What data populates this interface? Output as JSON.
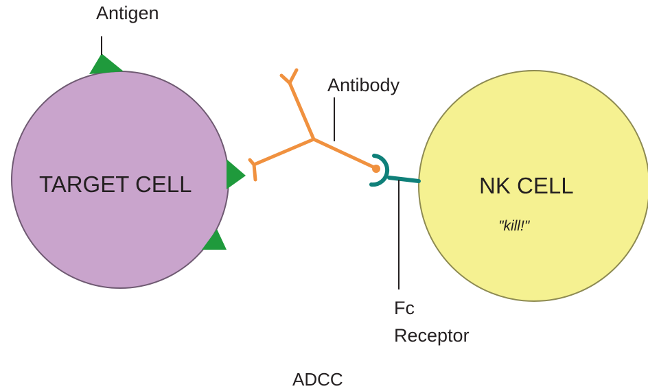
{
  "labels": {
    "antigen": "Antigen",
    "antibody": "Antibody",
    "target_cell": "TARGET CELL",
    "nk_cell": "NK CELL",
    "kill": "\"kill!\"",
    "fc_line1": "Fc",
    "fc_line2": "Receptor",
    "caption": "ADCC"
  },
  "colors": {
    "target_cell_fill": "#c9a4cc",
    "target_cell_stroke": "#6f5a72",
    "nk_cell_fill": "#f5f191",
    "nk_cell_stroke": "#8d8a52",
    "antigen": "#1f9a3c",
    "antibody": "#f0913f",
    "fc_receptor": "#0f8079",
    "leader_line": "#231f20"
  }
}
